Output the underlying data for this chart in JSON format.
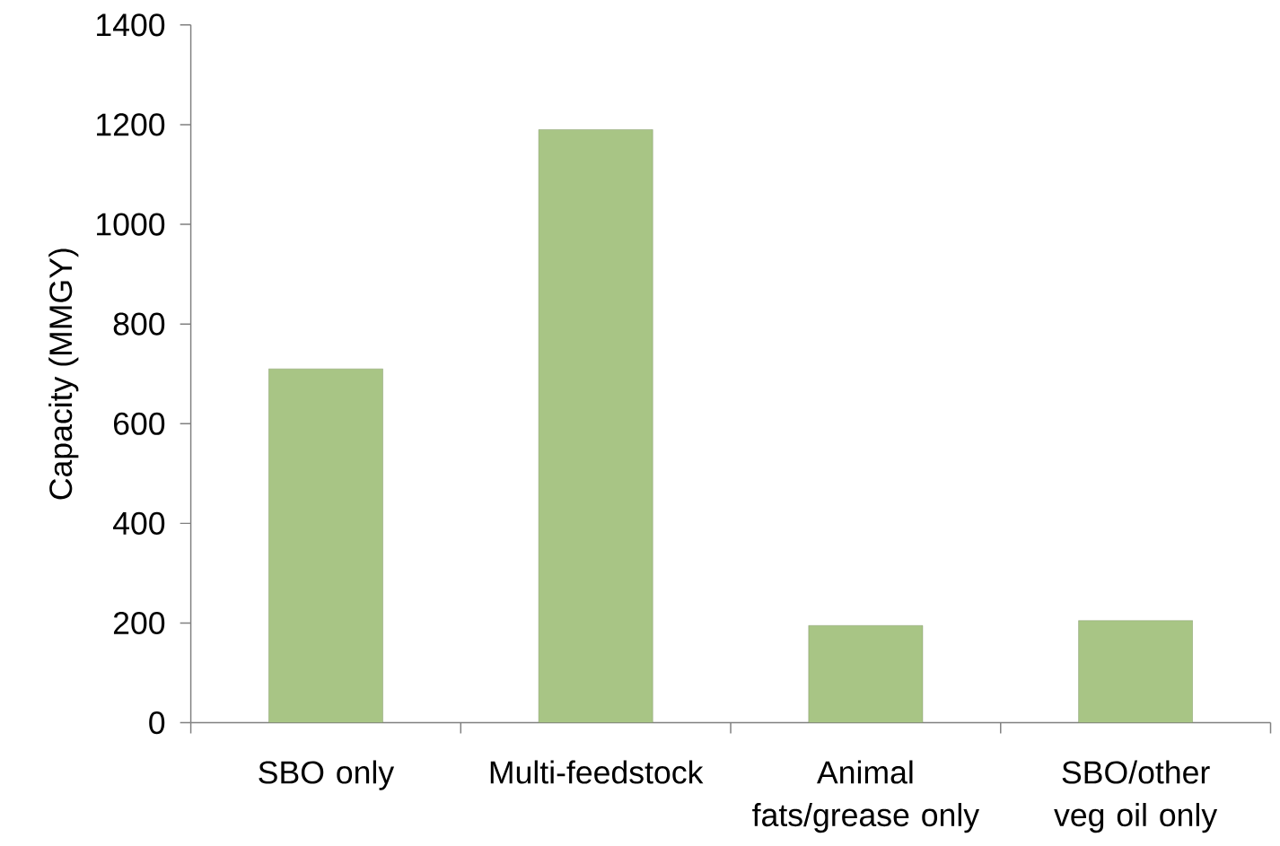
{
  "chart_data": {
    "type": "bar",
    "ylabel": "Capacity (MMGY)",
    "categories": [
      "SBO only",
      "Multi-feedstock",
      "Animal fats/grease only",
      "SBO/other veg oil only"
    ],
    "values": [
      710,
      1190,
      195,
      205
    ],
    "color": "#a8c585",
    "ylim": [
      0,
      1400
    ],
    "yticks": [
      0,
      200,
      400,
      600,
      800,
      1000,
      1200,
      1400
    ],
    "grid": false
  }
}
